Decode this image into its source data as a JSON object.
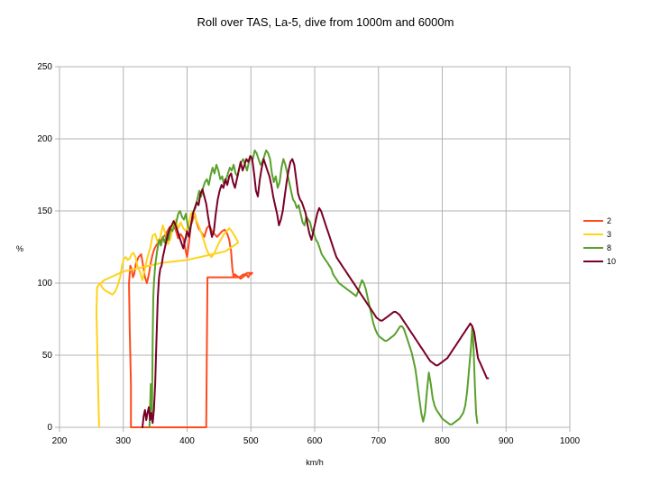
{
  "chart_data": {
    "type": "line",
    "title": "Roll over TAS, La-5, dive from 1000m and 6000m",
    "xlabel": "km/h",
    "ylabel": "%",
    "xlim": [
      200,
      1000
    ],
    "ylim": [
      0,
      250
    ],
    "xticks": [
      200,
      300,
      400,
      500,
      600,
      700,
      800,
      900,
      1000
    ],
    "yticks": [
      0,
      50,
      100,
      150,
      200,
      250
    ],
    "grid": true,
    "legend_position": "right",
    "series": [
      {
        "name": "2",
        "color": "#ff4a1c",
        "x": [
          312,
          312,
          310,
          309,
          311,
          313,
          315,
          317,
          320,
          324,
          328,
          331,
          334,
          337,
          340,
          343,
          346,
          349,
          353,
          357,
          361,
          365,
          369,
          373,
          378,
          382,
          386,
          390,
          394,
          397,
          400,
          403,
          406,
          409,
          412,
          415,
          418,
          421,
          424,
          427,
          431,
          435,
          439,
          443,
          447,
          451,
          455,
          459,
          463,
          466,
          469,
          471,
          473,
          475,
          478,
          481,
          484,
          487,
          490,
          493,
          496,
          499,
          502,
          502,
          500,
          497,
          494,
          491,
          488,
          485,
          482,
          479,
          476,
          473,
          470,
          467,
          464,
          461,
          458,
          455,
          450,
          445,
          440,
          435,
          432,
          430,
          380,
          330,
          320,
          314
        ],
        "y": [
          0,
          30,
          70,
          100,
          112,
          110,
          104,
          106,
          114,
          118,
          120,
          112,
          104,
          100,
          106,
          114,
          120,
          124,
          127,
          128,
          131,
          133,
          136,
          139,
          140,
          137,
          131,
          134,
          131,
          124,
          118,
          128,
          140,
          144,
          148,
          142,
          138,
          136,
          134,
          132,
          138,
          140,
          136,
          134,
          132,
          134,
          136,
          137,
          134,
          130,
          122,
          110,
          104,
          106,
          105,
          104,
          103,
          104,
          105,
          106,
          104,
          107,
          107,
          107,
          106,
          107,
          107,
          106,
          106,
          105,
          104,
          104,
          104,
          104,
          104,
          104,
          104,
          104,
          104,
          104,
          104,
          104,
          104,
          104,
          104,
          0,
          0,
          0,
          0,
          0
        ]
      },
      {
        "name": "3",
        "color": "#ffd21c",
        "x": [
          262,
          260,
          258,
          259,
          263,
          267,
          271,
          275,
          279,
          283,
          287,
          291,
          295,
          298,
          301,
          304,
          307,
          310,
          313,
          316,
          319,
          322,
          326,
          330,
          334,
          338,
          342,
          346,
          350,
          354,
          358,
          362,
          366,
          370,
          374,
          378,
          382,
          386,
          390,
          394,
          398,
          402,
          406,
          410,
          414,
          418,
          422,
          426,
          430,
          434,
          438,
          442,
          446,
          450,
          454,
          458,
          462,
          466,
          470,
          474,
          478,
          480,
          470,
          460,
          440,
          420,
          400,
          380,
          360,
          340,
          320,
          300,
          290,
          280,
          270,
          265
        ],
        "y": [
          0,
          40,
          80,
          97,
          100,
          97,
          95,
          94,
          93,
          92,
          94,
          98,
          104,
          112,
          117,
          118,
          116,
          117,
          120,
          121,
          118,
          112,
          108,
          102,
          110,
          118,
          124,
          133,
          134,
          128,
          132,
          140,
          134,
          127,
          131,
          140,
          144,
          138,
          142,
          138,
          136,
          140,
          148,
          150,
          144,
          140,
          135,
          130,
          124,
          120,
          118,
          120,
          124,
          128,
          131,
          134,
          136,
          138,
          136,
          133,
          130,
          128,
          125,
          122,
          120,
          118,
          116,
          115,
          114,
          112,
          110,
          108,
          106,
          104,
          102,
          100
        ]
      },
      {
        "name": "8",
        "color": "#5aa02c",
        "x": [
          341,
          342,
          343,
          344,
          345,
          346,
          347,
          348,
          350,
          353,
          356,
          359,
          362,
          365,
          368,
          371,
          374,
          377,
          380,
          383,
          386,
          389,
          392,
          395,
          398,
          401,
          404,
          407,
          410,
          413,
          416,
          419,
          422,
          425,
          428,
          431,
          434,
          437,
          440,
          443,
          446,
          449,
          452,
          455,
          458,
          461,
          464,
          467,
          470,
          473,
          476,
          479,
          482,
          485,
          488,
          491,
          494,
          497,
          500,
          503,
          506,
          509,
          512,
          515,
          518,
          521,
          524,
          527,
          530,
          533,
          536,
          539,
          542,
          545,
          548,
          551,
          554,
          557,
          560,
          563,
          566,
          569,
          572,
          575,
          578,
          581,
          584,
          587,
          590,
          593,
          596,
          599,
          602,
          605,
          608,
          611,
          614,
          617,
          620,
          623,
          626,
          629,
          632,
          635,
          638,
          641,
          644,
          647,
          650,
          653,
          656,
          659,
          662,
          665,
          668,
          671,
          674,
          677,
          680,
          683,
          686,
          689,
          692,
          695,
          698,
          701,
          704,
          707,
          710,
          713,
          716,
          719,
          722,
          725,
          728,
          731,
          734,
          737,
          740,
          743,
          746,
          749,
          752,
          755,
          758,
          761,
          764,
          767,
          770,
          773,
          776,
          779,
          782,
          785,
          788,
          791,
          794,
          797,
          800,
          803,
          806,
          809,
          812,
          815,
          818,
          821,
          824,
          827,
          830,
          833,
          836,
          839,
          842,
          845,
          847,
          849,
          851,
          853,
          855
        ],
        "y": [
          0,
          15,
          30,
          20,
          10,
          60,
          90,
          100,
          112,
          122,
          130,
          126,
          132,
          128,
          134,
          130,
          138,
          136,
          140,
          142,
          148,
          150,
          146,
          144,
          148,
          140,
          136,
          142,
          150,
          152,
          158,
          164,
          160,
          166,
          170,
          172,
          168,
          175,
          180,
          176,
          182,
          178,
          172,
          174,
          168,
          172,
          176,
          180,
          178,
          182,
          176,
          174,
          180,
          184,
          186,
          182,
          178,
          184,
          188,
          186,
          192,
          190,
          186,
          182,
          184,
          188,
          192,
          190,
          186,
          176,
          170,
          174,
          166,
          170,
          180,
          186,
          182,
          176,
          170,
          164,
          158,
          156,
          152,
          154,
          148,
          142,
          140,
          146,
          144,
          142,
          136,
          134,
          130,
          128,
          124,
          120,
          118,
          116,
          114,
          112,
          110,
          106,
          104,
          102,
          100,
          99,
          98,
          97,
          96,
          95,
          94,
          93,
          92,
          91,
          94,
          98,
          102,
          100,
          96,
          90,
          84,
          78,
          72,
          68,
          65,
          63,
          62,
          61,
          60,
          60,
          61,
          62,
          63,
          64,
          66,
          68,
          70,
          70,
          68,
          64,
          60,
          56,
          52,
          46,
          40,
          30,
          20,
          10,
          4,
          10,
          25,
          38,
          30,
          20,
          15,
          12,
          10,
          8,
          6,
          5,
          4,
          3,
          2,
          2,
          3,
          4,
          5,
          6,
          8,
          10,
          15,
          25,
          40,
          55,
          70,
          55,
          30,
          10,
          3
        ],
        "note": ""
      },
      {
        "name": "10",
        "color": "#7a0026",
        "x": [
          330,
          332,
          334,
          336,
          338,
          340,
          342,
          344,
          346,
          348,
          350,
          352,
          354,
          356,
          358,
          360,
          362,
          364,
          366,
          368,
          370,
          373,
          376,
          379,
          382,
          385,
          388,
          391,
          394,
          397,
          400,
          403,
          406,
          409,
          412,
          415,
          418,
          421,
          424,
          427,
          430,
          433,
          436,
          439,
          442,
          445,
          448,
          451,
          454,
          457,
          460,
          463,
          466,
          469,
          472,
          475,
          478,
          481,
          484,
          487,
          490,
          493,
          496,
          499,
          502,
          505,
          508,
          511,
          514,
          517,
          520,
          523,
          526,
          529,
          532,
          535,
          538,
          541,
          544,
          547,
          550,
          553,
          556,
          559,
          562,
          565,
          568,
          571,
          574,
          577,
          580,
          583,
          586,
          589,
          592,
          595,
          598,
          601,
          604,
          607,
          610,
          613,
          616,
          619,
          622,
          625,
          628,
          631,
          634,
          637,
          640,
          643,
          646,
          649,
          652,
          655,
          658,
          661,
          664,
          667,
          670,
          673,
          676,
          679,
          682,
          685,
          688,
          691,
          694,
          697,
          700,
          703,
          706,
          709,
          712,
          715,
          718,
          721,
          724,
          727,
          730,
          733,
          736,
          739,
          742,
          745,
          748,
          751,
          754,
          757,
          760,
          763,
          766,
          769,
          772,
          775,
          778,
          781,
          784,
          787,
          790,
          793,
          796,
          799,
          802,
          805,
          808,
          811,
          814,
          817,
          820,
          823,
          826,
          829,
          832,
          835,
          838,
          841,
          844,
          847,
          850,
          852,
          854,
          856,
          858,
          860,
          862,
          864,
          866,
          868,
          870,
          872
        ],
        "y": [
          0,
          8,
          12,
          5,
          10,
          14,
          5,
          10,
          3,
          12,
          30,
          60,
          90,
          104,
          110,
          112,
          118,
          122,
          126,
          130,
          134,
          138,
          140,
          143,
          140,
          136,
          132,
          128,
          124,
          130,
          136,
          132,
          140,
          148,
          152,
          156,
          154,
          162,
          165,
          160,
          155,
          146,
          138,
          132,
          136,
          148,
          158,
          164,
          168,
          166,
          172,
          168,
          174,
          176,
          170,
          166,
          172,
          178,
          184,
          178,
          182,
          186,
          184,
          188,
          186,
          176,
          164,
          160,
          172,
          180,
          186,
          182,
          178,
          174,
          168,
          160,
          154,
          148,
          140,
          144,
          150,
          160,
          170,
          178,
          184,
          186,
          182,
          172,
          162,
          158,
          156,
          152,
          148,
          140,
          134,
          130,
          136,
          142,
          148,
          152,
          150,
          146,
          142,
          138,
          134,
          130,
          126,
          122,
          118,
          116,
          114,
          112,
          110,
          108,
          106,
          104,
          102,
          100,
          98,
          96,
          94,
          92,
          90,
          88,
          86,
          84,
          82,
          80,
          78,
          76,
          75,
          74,
          74,
          75,
          76,
          77,
          78,
          79,
          80,
          80,
          79,
          78,
          76,
          74,
          72,
          70,
          68,
          66,
          64,
          62,
          60,
          58,
          56,
          54,
          52,
          50,
          48,
          46,
          45,
          44,
          43,
          43,
          44,
          45,
          46,
          47,
          48,
          50,
          52,
          54,
          56,
          58,
          60,
          62,
          64,
          66,
          68,
          70,
          72,
          70,
          66,
          60,
          54,
          48,
          46,
          44,
          42,
          40,
          38,
          36,
          34,
          34
        ]
      }
    ]
  }
}
